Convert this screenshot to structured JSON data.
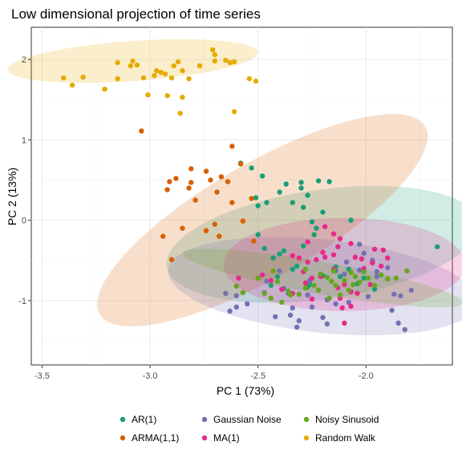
{
  "chart_data": {
    "type": "scatter",
    "title": "Low dimensional projection of time series",
    "xlabel": "PC 1 (73%)",
    "ylabel": "PC 2 (13%)",
    "xlim": [
      -3.55,
      -1.6
    ],
    "ylim": [
      -1.8,
      2.4
    ],
    "xticks": [
      -3.5,
      -3.0,
      -2.5,
      -2.0
    ],
    "xtick_labels": [
      "-3.5",
      "-3.0",
      "-2.5",
      "-2.0"
    ],
    "yticks": [
      -1,
      0,
      1,
      2
    ],
    "ytick_labels": [
      "-1",
      "0",
      "1",
      "2"
    ],
    "grid": true,
    "legend_position": "bottom",
    "series": [
      {
        "name": "AR(1)",
        "color": "#1b9e77",
        "ellipse": {
          "cx": -2.2,
          "cy": -0.3,
          "rx": 0.73,
          "ry": 0.68,
          "angle": 8
        },
        "points": [
          [
            -2.58,
            0.71
          ],
          [
            -2.53,
            0.65
          ],
          [
            -2.48,
            0.55
          ],
          [
            -2.37,
            0.45
          ],
          [
            -2.3,
            0.47
          ],
          [
            -2.22,
            0.49
          ],
          [
            -2.17,
            0.48
          ],
          [
            -2.3,
            0.4
          ],
          [
            -2.4,
            0.35
          ],
          [
            -2.27,
            0.31
          ],
          [
            -2.34,
            0.22
          ],
          [
            -2.29,
            0.16
          ],
          [
            -2.51,
            0.28
          ],
          [
            -2.46,
            0.22
          ],
          [
            -2.5,
            0.18
          ],
          [
            -2.2,
            0.1
          ],
          [
            -2.07,
            0.0
          ],
          [
            -2.25,
            -0.02
          ],
          [
            -2.23,
            -0.1
          ],
          [
            -2.24,
            -0.18
          ],
          [
            -2.5,
            -0.18
          ],
          [
            -2.47,
            -0.35
          ],
          [
            -2.38,
            -0.38
          ],
          [
            -2.4,
            -0.42
          ],
          [
            -2.29,
            -0.32
          ],
          [
            -2.32,
            -0.57
          ],
          [
            -2.34,
            -0.61
          ],
          [
            -2.2,
            -0.69
          ],
          [
            -2.14,
            -0.58
          ],
          [
            -2.08,
            -0.61
          ],
          [
            -2.01,
            -0.72
          ],
          [
            -1.67,
            -0.33
          ],
          [
            -2.26,
            -0.8
          ],
          [
            -2.27,
            -0.83
          ],
          [
            -2.12,
            -0.7
          ],
          [
            -2.04,
            -0.79
          ],
          [
            -2.41,
            -0.7
          ],
          [
            -2.44,
            -0.81
          ],
          [
            -2.43,
            -0.47
          ],
          [
            -1.96,
            -0.86
          ]
        ]
      },
      {
        "name": "ARMA(1,1)",
        "color": "#d95f02",
        "ellipse": {
          "cx": -2.48,
          "cy": 0.0,
          "rx": 0.87,
          "ry": 0.71,
          "angle": 30
        },
        "points": [
          [
            -3.04,
            1.11
          ],
          [
            -2.62,
            0.92
          ],
          [
            -2.58,
            0.7
          ],
          [
            -2.74,
            0.61
          ],
          [
            -2.81,
            0.64
          ],
          [
            -2.81,
            0.47
          ],
          [
            -2.72,
            0.5
          ],
          [
            -2.82,
            0.4
          ],
          [
            -2.64,
            0.48
          ],
          [
            -2.67,
            0.54
          ],
          [
            -2.69,
            0.35
          ],
          [
            -2.53,
            0.27
          ],
          [
            -2.91,
            0.48
          ],
          [
            -2.88,
            0.52
          ],
          [
            -2.92,
            0.38
          ],
          [
            -2.79,
            0.25
          ],
          [
            -2.57,
            -0.01
          ],
          [
            -2.62,
            0.22
          ],
          [
            -2.94,
            -0.2
          ],
          [
            -2.7,
            -0.05
          ],
          [
            -2.85,
            -0.1
          ],
          [
            -2.74,
            -0.13
          ],
          [
            -2.68,
            -0.2
          ],
          [
            -2.9,
            -0.49
          ],
          [
            -2.52,
            -0.26
          ]
        ]
      },
      {
        "name": "Gaussian Noise",
        "color": "#7570b3",
        "ellipse": {
          "cx": -2.2,
          "cy": -0.82,
          "rx": 0.72,
          "ry": 0.58,
          "angle": -6
        },
        "points": [
          [
            -2.47,
            -0.9
          ],
          [
            -2.46,
            -0.76
          ],
          [
            -2.36,
            -0.91
          ],
          [
            -2.38,
            -0.85
          ],
          [
            -2.26,
            -0.75
          ],
          [
            -2.14,
            -0.63
          ],
          [
            -2.09,
            -0.52
          ],
          [
            -2.03,
            -0.62
          ],
          [
            -2.1,
            -0.67
          ],
          [
            -1.97,
            -0.5
          ],
          [
            -2.01,
            -0.41
          ],
          [
            -2.03,
            -0.3
          ],
          [
            -1.9,
            -0.59
          ],
          [
            -1.95,
            -0.7
          ],
          [
            -1.87,
            -0.92
          ],
          [
            -1.79,
            -0.87
          ],
          [
            -1.84,
            -0.94
          ],
          [
            -1.88,
            -1.12
          ],
          [
            -1.85,
            -1.28
          ],
          [
            -1.82,
            -1.36
          ],
          [
            -2.14,
            -1.04
          ],
          [
            -2.18,
            -0.99
          ],
          [
            -2.2,
            -1.21
          ],
          [
            -2.18,
            -1.29
          ],
          [
            -2.25,
            -1.08
          ],
          [
            -2.34,
            -1.09
          ],
          [
            -2.35,
            -1.18
          ],
          [
            -2.32,
            -1.33
          ],
          [
            -2.31,
            -1.25
          ],
          [
            -2.42,
            -1.2
          ],
          [
            -2.55,
            -1.04
          ],
          [
            -2.6,
            -1.08
          ],
          [
            -2.63,
            -1.13
          ],
          [
            -2.65,
            -0.91
          ],
          [
            -2.6,
            -0.94
          ],
          [
            -2.27,
            -0.93
          ],
          [
            -2.4,
            -0.63
          ],
          [
            -2.08,
            -1.02
          ],
          [
            -1.99,
            -0.95
          ],
          [
            -1.95,
            -0.64
          ]
        ]
      },
      {
        "name": "MA(1)",
        "color": "#e7298a",
        "ellipse": {
          "cx": -2.1,
          "cy": -0.55,
          "rx": 0.56,
          "ry": 0.58,
          "angle": 0
        },
        "points": [
          [
            -2.2,
            -0.4
          ],
          [
            -2.13,
            -0.33
          ],
          [
            -2.15,
            -0.17
          ],
          [
            -2.19,
            -0.08
          ],
          [
            -2.12,
            -0.23
          ],
          [
            -2.07,
            -0.29
          ],
          [
            -2.15,
            -0.43
          ],
          [
            -2.19,
            -0.46
          ],
          [
            -2.23,
            -0.49
          ],
          [
            -2.31,
            -0.47
          ],
          [
            -2.27,
            -0.52
          ],
          [
            -2.34,
            -0.44
          ],
          [
            -2.27,
            -0.27
          ],
          [
            -2.05,
            -0.46
          ],
          [
            -2.1,
            -0.8
          ],
          [
            -2.13,
            -0.84
          ],
          [
            -2.15,
            -0.61
          ],
          [
            -2.21,
            -0.7
          ],
          [
            -2.02,
            -0.48
          ],
          [
            -1.96,
            -0.36
          ],
          [
            -1.92,
            -0.37
          ],
          [
            -1.9,
            -0.47
          ],
          [
            -1.93,
            -0.57
          ],
          [
            -1.97,
            -0.53
          ],
          [
            -1.98,
            -0.8
          ],
          [
            -2.04,
            -0.91
          ],
          [
            -2.07,
            -0.89
          ],
          [
            -2.12,
            -0.97
          ],
          [
            -2.11,
            -1.09
          ],
          [
            -2.07,
            -1.07
          ],
          [
            -2.1,
            -1.28
          ],
          [
            -2.25,
            -0.98
          ],
          [
            -2.34,
            -0.91
          ],
          [
            -2.39,
            -0.86
          ],
          [
            -2.44,
            -0.75
          ],
          [
            -2.29,
            -0.64
          ],
          [
            -2.25,
            -0.72
          ],
          [
            -2.28,
            -0.78
          ],
          [
            -2.48,
            -0.68
          ],
          [
            -2.59,
            -0.72
          ],
          [
            -2.01,
            -0.6
          ]
        ]
      },
      {
        "name": "Noisy Sinusoid",
        "color": "#66a61e",
        "ellipse": {
          "cx": -2.2,
          "cy": -0.72,
          "rx": 0.66,
          "ry": 0.2,
          "angle": -10
        },
        "points": [
          [
            -2.5,
            -0.72
          ],
          [
            -2.43,
            -0.63
          ],
          [
            -2.41,
            -0.76
          ],
          [
            -2.39,
            -1.02
          ],
          [
            -2.36,
            -0.88
          ],
          [
            -2.31,
            -0.92
          ],
          [
            -2.28,
            -0.61
          ],
          [
            -2.24,
            -0.81
          ],
          [
            -2.21,
            -0.67
          ],
          [
            -2.18,
            -0.71
          ],
          [
            -2.16,
            -0.76
          ],
          [
            -2.15,
            -0.63
          ],
          [
            -2.14,
            -0.81
          ],
          [
            -2.12,
            -0.93
          ],
          [
            -2.1,
            -0.75
          ],
          [
            -2.08,
            -0.87
          ],
          [
            -2.06,
            -0.8
          ],
          [
            -2.05,
            -0.7
          ],
          [
            -2.03,
            -0.77
          ],
          [
            -2.01,
            -0.64
          ],
          [
            -1.99,
            -0.72
          ],
          [
            -1.96,
            -0.81
          ],
          [
            -1.93,
            -0.68
          ],
          [
            -1.9,
            -0.73
          ],
          [
            -1.86,
            -0.72
          ],
          [
            -1.81,
            -0.63
          ],
          [
            -2.6,
            -0.82
          ],
          [
            -2.57,
            -0.9
          ],
          [
            -2.47,
            -0.91
          ],
          [
            -2.44,
            -0.97
          ],
          [
            -2.35,
            -0.93
          ],
          [
            -2.28,
            -0.84
          ],
          [
            -2.17,
            -0.97
          ],
          [
            -2.07,
            -0.65
          ],
          [
            -2.22,
            -0.87
          ]
        ]
      },
      {
        "name": "Random Walk",
        "color": "#e6ab02",
        "ellipse": {
          "cx": -3.08,
          "cy": 1.98,
          "rx": 0.58,
          "ry": 0.25,
          "angle": 4
        },
        "points": [
          [
            -3.36,
            1.68
          ],
          [
            -3.4,
            1.77
          ],
          [
            -3.31,
            1.78
          ],
          [
            -3.21,
            1.63
          ],
          [
            -3.15,
            1.96
          ],
          [
            -3.15,
            1.76
          ],
          [
            -3.09,
            1.92
          ],
          [
            -3.08,
            1.98
          ],
          [
            -3.06,
            1.93
          ],
          [
            -3.03,
            1.77
          ],
          [
            -3.01,
            1.56
          ],
          [
            -2.97,
            1.86
          ],
          [
            -2.95,
            1.84
          ],
          [
            -2.93,
            1.82
          ],
          [
            -2.9,
            1.77
          ],
          [
            -2.89,
            1.92
          ],
          [
            -2.87,
            1.97
          ],
          [
            -2.85,
            1.86
          ],
          [
            -2.82,
            1.76
          ],
          [
            -2.77,
            1.92
          ],
          [
            -2.7,
            1.98
          ],
          [
            -2.7,
            2.06
          ],
          [
            -2.71,
            2.12
          ],
          [
            -2.65,
            1.99
          ],
          [
            -2.63,
            1.96
          ],
          [
            -2.61,
            1.97
          ],
          [
            -2.54,
            1.76
          ],
          [
            -2.51,
            1.73
          ],
          [
            -2.85,
            1.53
          ],
          [
            -2.92,
            1.55
          ],
          [
            -2.86,
            1.33
          ],
          [
            -2.61,
            1.35
          ],
          [
            -2.98,
            1.8
          ]
        ]
      }
    ]
  }
}
